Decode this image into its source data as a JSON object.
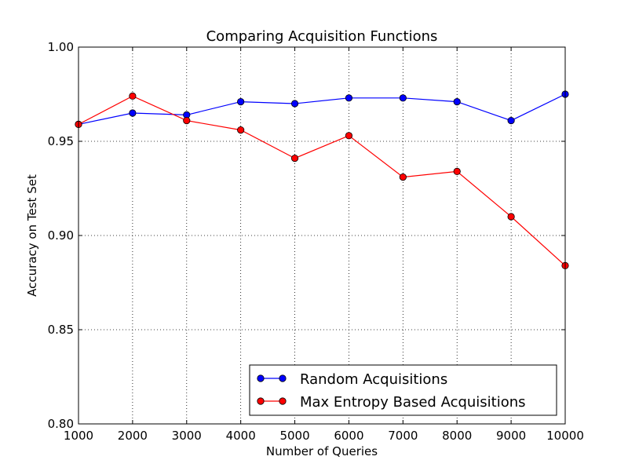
{
  "chart_data": {
    "type": "line",
    "title": "Comparing Acquisition Functions",
    "xlabel": "Number of Queries",
    "ylabel": "Accuracy on Test Set",
    "x": [
      1000,
      2000,
      3000,
      4000,
      5000,
      6000,
      7000,
      8000,
      9000,
      10000
    ],
    "xlim": [
      1000,
      10000
    ],
    "ylim": [
      0.8,
      1.0
    ],
    "xticks": [
      "1000",
      "2000",
      "3000",
      "4000",
      "5000",
      "6000",
      "7000",
      "8000",
      "9000",
      "10000"
    ],
    "yticks": [
      "0.80",
      "0.85",
      "0.90",
      "0.95",
      "1.00"
    ],
    "grid": true,
    "legend_position": "lower-right",
    "series": [
      {
        "name": "Random Acquisitions",
        "color": "#0000ff",
        "values": [
          0.959,
          0.965,
          0.964,
          0.971,
          0.97,
          0.973,
          0.973,
          0.971,
          0.961,
          0.975
        ]
      },
      {
        "name": "Max Entropy Based Acquisitions",
        "color": "#ff0000",
        "values": [
          0.959,
          0.974,
          0.961,
          0.956,
          0.941,
          0.953,
          0.931,
          0.934,
          0.91,
          0.884
        ]
      }
    ]
  }
}
